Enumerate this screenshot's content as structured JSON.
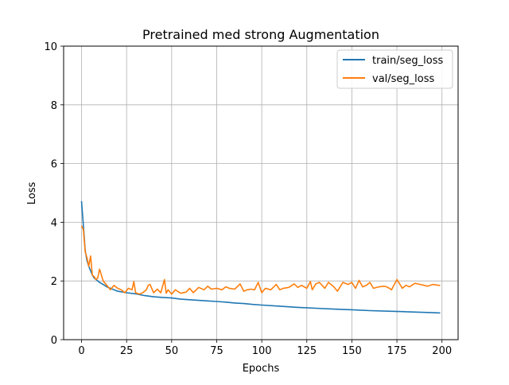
{
  "chart_data": {
    "type": "line",
    "title": "Pretrained med strong Augmentation",
    "xlabel": "Epochs",
    "ylabel": "Loss",
    "xlim": [
      -9.95,
      208.95
    ],
    "ylim": [
      0,
      10
    ],
    "x_ticks": [
      0,
      25,
      50,
      75,
      100,
      125,
      150,
      175,
      200
    ],
    "y_ticks": [
      0,
      2,
      4,
      6,
      8,
      10
    ],
    "grid": true,
    "legend_position": "top-right",
    "series": [
      {
        "name": "train/seg_loss",
        "color": "#1f77b4",
        "x": [
          0,
          1,
          2,
          3,
          4,
          5,
          6,
          7,
          8,
          10,
          12,
          14,
          16,
          18,
          20,
          25,
          30,
          35,
          40,
          45,
          50,
          55,
          60,
          65,
          70,
          75,
          80,
          85,
          90,
          95,
          100,
          110,
          120,
          130,
          140,
          150,
          160,
          170,
          180,
          190,
          195,
          199
        ],
        "values": [
          4.72,
          3.9,
          3.05,
          2.7,
          2.5,
          2.35,
          2.2,
          2.1,
          2.05,
          1.95,
          1.88,
          1.8,
          1.75,
          1.7,
          1.65,
          1.6,
          1.56,
          1.5,
          1.46,
          1.44,
          1.42,
          1.38,
          1.36,
          1.34,
          1.32,
          1.3,
          1.28,
          1.25,
          1.23,
          1.2,
          1.18,
          1.14,
          1.1,
          1.07,
          1.04,
          1.02,
          0.99,
          0.97,
          0.95,
          0.93,
          0.92,
          0.91
        ]
      },
      {
        "name": "val/seg_loss",
        "color": "#ff7f0e",
        "x": [
          0,
          1,
          2,
          3,
          4,
          5,
          6,
          7,
          8,
          9,
          10,
          11,
          12,
          14,
          16,
          18,
          20,
          22,
          24,
          26,
          28,
          29,
          30,
          32,
          34,
          36,
          37,
          38,
          40,
          42,
          44,
          46,
          47,
          48,
          50,
          52,
          55,
          58,
          60,
          62,
          65,
          68,
          70,
          72,
          75,
          78,
          80,
          82,
          85,
          88,
          90,
          92,
          94,
          96,
          98,
          100,
          102,
          105,
          108,
          110,
          112,
          115,
          118,
          120,
          122,
          125,
          127,
          128,
          130,
          132,
          135,
          137,
          140,
          142,
          145,
          148,
          150,
          152,
          154,
          156,
          158,
          160,
          162,
          165,
          168,
          170,
          172,
          175,
          178,
          180,
          182,
          185,
          188,
          190,
          192,
          195,
          198,
          199
        ],
        "values": [
          3.88,
          3.75,
          3.0,
          2.8,
          2.5,
          2.85,
          2.2,
          2.15,
          2.05,
          2.1,
          2.4,
          2.2,
          2.0,
          1.85,
          1.7,
          1.85,
          1.75,
          1.7,
          1.6,
          1.75,
          1.7,
          1.98,
          1.6,
          1.55,
          1.6,
          1.7,
          1.85,
          1.88,
          1.6,
          1.72,
          1.6,
          2.05,
          1.58,
          1.7,
          1.55,
          1.7,
          1.58,
          1.62,
          1.75,
          1.6,
          1.78,
          1.7,
          1.82,
          1.72,
          1.75,
          1.7,
          1.8,
          1.75,
          1.72,
          1.9,
          1.65,
          1.7,
          1.72,
          1.7,
          1.95,
          1.6,
          1.75,
          1.7,
          1.88,
          1.7,
          1.75,
          1.78,
          1.9,
          1.78,
          1.85,
          1.75,
          1.98,
          1.7,
          1.9,
          1.95,
          1.75,
          1.95,
          1.8,
          1.65,
          1.95,
          1.88,
          1.95,
          1.75,
          2.02,
          1.8,
          1.85,
          1.95,
          1.75,
          1.8,
          1.82,
          1.78,
          1.7,
          2.05,
          1.75,
          1.85,
          1.8,
          1.92,
          1.88,
          1.85,
          1.82,
          1.88,
          1.85,
          1.85
        ]
      }
    ]
  }
}
